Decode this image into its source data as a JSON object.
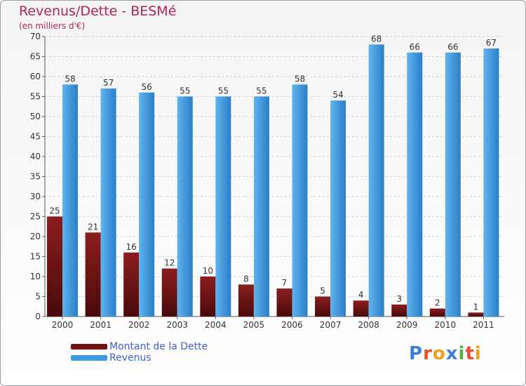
{
  "chart_data": {
    "type": "bar",
    "title": "Revenus/Dette - BESMé",
    "subtitle": "(en milliers d'€)",
    "categories": [
      "2000",
      "2001",
      "2002",
      "2003",
      "2004",
      "2005",
      "2006",
      "2007",
      "2008",
      "2009",
      "2010",
      "2011"
    ],
    "series": [
      {
        "name": "Montant de la Dette",
        "values": [
          25,
          21,
          16,
          12,
          10,
          8,
          7,
          5,
          4,
          3,
          2,
          1
        ],
        "color": "#7a1a1a"
      },
      {
        "name": "Revenus",
        "values": [
          58,
          57,
          56,
          55,
          55,
          55,
          58,
          54,
          68,
          66,
          66,
          67
        ],
        "color": "#3d9be0"
      }
    ],
    "ylim": [
      0,
      70
    ],
    "yticks": [
      0,
      5,
      10,
      15,
      20,
      25,
      30,
      35,
      40,
      45,
      50,
      55,
      60,
      65,
      70
    ],
    "grid": "horizontal dashed",
    "legend_position": "bottom-left"
  },
  "logo_text": "Proxiti",
  "colors": {
    "title": "#b2245a",
    "legend_text": "#3f5fd0",
    "axis_text": "#333333",
    "grid": "#d0d0d0",
    "debt_top": "#8b1e1e",
    "debt_bottom": "#4a0a0a",
    "rev_top": "#5fb3ef",
    "rev_bottom": "#2a7fc6"
  }
}
